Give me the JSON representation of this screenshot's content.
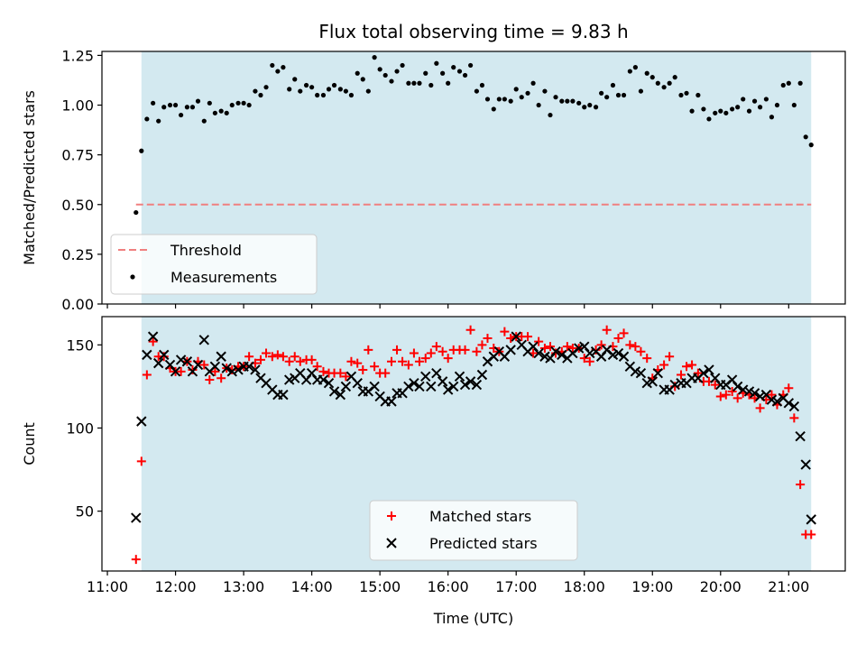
{
  "chart_data": [
    {
      "type": "scatter",
      "title": "Flux total observing time = 9.83 h",
      "xlabel": "",
      "ylabel": "Matched/Predicted stars",
      "xlim_hours": [
        10.92,
        21.83
      ],
      "ylim": [
        0,
        1.27
      ],
      "yticks": [
        0.0,
        0.25,
        0.5,
        0.75,
        1.0,
        1.25
      ],
      "ytick_labels": [
        "0.00",
        "0.25",
        "0.50",
        "0.75",
        "1.00",
        "1.25"
      ],
      "xticks_hours": [
        11,
        12,
        13,
        14,
        15,
        16,
        17,
        18,
        19,
        20,
        21
      ],
      "show_xtick_labels": false,
      "observing_window_hours": [
        11.5,
        21.33
      ],
      "shade_color": "#d3e9f0",
      "threshold": 0.5,
      "threshold_color": "#f08080",
      "legend_position": "lower-left",
      "legend": [
        {
          "label": "Threshold",
          "kind": "dashed-line",
          "color": "#f08080"
        },
        {
          "label": "Measurements",
          "kind": "dot",
          "color": "#000000"
        }
      ],
      "series": [
        {
          "name": "Measurements",
          "marker": "dot",
          "color": "#000000",
          "x": [
            11.42,
            11.5,
            11.58,
            11.67,
            11.75,
            11.83,
            11.92,
            12.0,
            12.08,
            12.17,
            12.25,
            12.33,
            12.42,
            12.5,
            12.58,
            12.67,
            12.75,
            12.83,
            12.92,
            13.0,
            13.08,
            13.17,
            13.25,
            13.33,
            13.42,
            13.5,
            13.58,
            13.67,
            13.75,
            13.83,
            13.92,
            14.0,
            14.08,
            14.17,
            14.25,
            14.33,
            14.42,
            14.5,
            14.58,
            14.67,
            14.75,
            14.83,
            14.92,
            15.0,
            15.08,
            15.17,
            15.25,
            15.33,
            15.42,
            15.5,
            15.58,
            15.67,
            15.75,
            15.83,
            15.92,
            16.0,
            16.08,
            16.17,
            16.25,
            16.33,
            16.42,
            16.5,
            16.58,
            16.67,
            16.75,
            16.83,
            16.92,
            17.0,
            17.08,
            17.17,
            17.25,
            17.33,
            17.42,
            17.5,
            17.58,
            17.67,
            17.75,
            17.83,
            17.92,
            18.0,
            18.08,
            18.17,
            18.25,
            18.33,
            18.42,
            18.5,
            18.58,
            18.67,
            18.75,
            18.83,
            18.92,
            19.0,
            19.08,
            19.17,
            19.25,
            19.33,
            19.42,
            19.5,
            19.58,
            19.67,
            19.75,
            19.83,
            19.92,
            20.0,
            20.08,
            20.17,
            20.25,
            20.33,
            20.42,
            20.5,
            20.58,
            20.67,
            20.75,
            20.83,
            20.92,
            21.0,
            21.08,
            21.17,
            21.25,
            21.33
          ],
          "y": [
            0.46,
            0.77,
            0.93,
            1.01,
            0.92,
            0.99,
            1.0,
            1.0,
            0.95,
            0.99,
            0.99,
            1.02,
            0.92,
            1.01,
            0.96,
            0.97,
            0.96,
            1.0,
            1.01,
            1.01,
            1.0,
            1.07,
            1.05,
            1.09,
            1.2,
            1.17,
            1.19,
            1.08,
            1.13,
            1.07,
            1.1,
            1.09,
            1.05,
            1.05,
            1.08,
            1.1,
            1.08,
            1.07,
            1.05,
            1.16,
            1.13,
            1.07,
            1.24,
            1.18,
            1.15,
            1.12,
            1.17,
            1.2,
            1.11,
            1.11,
            1.11,
            1.16,
            1.1,
            1.21,
            1.16,
            1.11,
            1.19,
            1.17,
            1.15,
            1.2,
            1.07,
            1.1,
            1.03,
            0.98,
            1.03,
            1.03,
            1.02,
            1.08,
            1.04,
            1.06,
            1.11,
            1.0,
            1.07,
            0.95,
            1.04,
            1.02,
            1.02,
            1.02,
            1.01,
            0.99,
            1.0,
            0.99,
            1.06,
            1.04,
            1.1,
            1.05,
            1.05,
            1.17,
            1.19,
            1.07,
            1.16,
            1.14,
            1.11,
            1.09,
            1.11,
            1.14,
            1.05,
            1.06,
            0.97,
            1.05,
            0.98,
            0.93,
            0.96,
            0.97,
            0.96,
            0.98,
            0.99,
            1.03,
            0.97,
            1.02,
            0.99,
            1.03,
            0.94,
            1.0,
            1.1,
            1.11,
            1.0,
            1.11,
            0.84,
            0.8
          ]
        }
      ]
    },
    {
      "type": "scatter",
      "title": "",
      "xlabel": "Time (UTC)",
      "ylabel": "Count",
      "xlim_hours": [
        10.92,
        21.83
      ],
      "ylim": [
        14,
        167
      ],
      "yticks": [
        50,
        100,
        150
      ],
      "ytick_labels": [
        "50",
        "100",
        "150"
      ],
      "xticks_hours": [
        11,
        12,
        13,
        14,
        15,
        16,
        17,
        18,
        19,
        20,
        21
      ],
      "xtick_labels": [
        "11:00",
        "12:00",
        "13:00",
        "14:00",
        "15:00",
        "16:00",
        "17:00",
        "18:00",
        "19:00",
        "20:00",
        "21:00"
      ],
      "show_xtick_labels": true,
      "observing_window_hours": [
        11.5,
        21.33
      ],
      "shade_color": "#d3e9f0",
      "legend_position": "bottom-center",
      "legend": [
        {
          "label": "Matched stars",
          "kind": "plus",
          "color": "#ff0000"
        },
        {
          "label": "Predicted stars",
          "kind": "cross",
          "color": "#000000"
        }
      ],
      "series": [
        {
          "name": "Matched stars",
          "marker": "plus",
          "color": "#ff0000",
          "x": [
            11.42,
            11.5,
            11.58,
            11.67,
            11.75,
            11.83,
            11.92,
            12.0,
            12.08,
            12.17,
            12.25,
            12.33,
            12.42,
            12.5,
            12.58,
            12.67,
            12.75,
            12.83,
            12.92,
            13.0,
            13.08,
            13.17,
            13.25,
            13.33,
            13.42,
            13.5,
            13.58,
            13.67,
            13.75,
            13.83,
            13.92,
            14.0,
            14.08,
            14.17,
            14.25,
            14.33,
            14.42,
            14.5,
            14.58,
            14.67,
            14.75,
            14.83,
            14.92,
            15.0,
            15.08,
            15.17,
            15.25,
            15.33,
            15.42,
            15.5,
            15.58,
            15.67,
            15.75,
            15.83,
            15.92,
            16.0,
            16.08,
            16.17,
            16.25,
            16.33,
            16.42,
            16.5,
            16.58,
            16.67,
            16.75,
            16.83,
            16.92,
            17.0,
            17.08,
            17.17,
            17.25,
            17.33,
            17.42,
            17.5,
            17.58,
            17.67,
            17.75,
            17.83,
            17.92,
            18.0,
            18.08,
            18.17,
            18.25,
            18.33,
            18.42,
            18.5,
            18.58,
            18.67,
            18.75,
            18.83,
            18.92,
            19.0,
            19.08,
            19.17,
            19.25,
            19.33,
            19.42,
            19.5,
            19.58,
            19.67,
            19.75,
            19.83,
            19.92,
            20.0,
            20.08,
            20.17,
            20.25,
            20.33,
            20.42,
            20.5,
            20.58,
            20.67,
            20.75,
            20.83,
            20.92,
            21.0,
            21.08,
            21.17,
            21.25,
            21.33
          ],
          "y": [
            21,
            80,
            132,
            152,
            143,
            143,
            136,
            134,
            134,
            140,
            135,
            140,
            138,
            129,
            134,
            130,
            136,
            135,
            137,
            137,
            143,
            139,
            141,
            145,
            143,
            144,
            143,
            140,
            143,
            140,
            141,
            141,
            137,
            134,
            133,
            133,
            133,
            131,
            140,
            139,
            135,
            147,
            137,
            133,
            133,
            140,
            147,
            140,
            138,
            145,
            140,
            142,
            145,
            149,
            146,
            142,
            147,
            147,
            147,
            159,
            146,
            150,
            154,
            148,
            146,
            158,
            154,
            155,
            155,
            155,
            145,
            152,
            148,
            149,
            145,
            146,
            149,
            148,
            148,
            142,
            140,
            147,
            150,
            159,
            149,
            154,
            157,
            150,
            149,
            146,
            142,
            130,
            135,
            138,
            143,
            125,
            132,
            137,
            138,
            133,
            128,
            128,
            126,
            119,
            120,
            122,
            118,
            121,
            120,
            118,
            112,
            117,
            120,
            114,
            120,
            124,
            106,
            66,
            36,
            36
          ]
        },
        {
          "name": "Predicted stars",
          "marker": "cross",
          "color": "#000000",
          "x": [
            11.42,
            11.5,
            11.58,
            11.67,
            11.75,
            11.83,
            11.92,
            12.0,
            12.08,
            12.17,
            12.25,
            12.33,
            12.42,
            12.5,
            12.58,
            12.67,
            12.75,
            12.83,
            12.92,
            13.0,
            13.08,
            13.17,
            13.25,
            13.33,
            13.42,
            13.5,
            13.58,
            13.67,
            13.75,
            13.83,
            13.92,
            14.0,
            14.08,
            14.17,
            14.25,
            14.33,
            14.42,
            14.5,
            14.58,
            14.67,
            14.75,
            14.83,
            14.92,
            15.0,
            15.08,
            15.17,
            15.25,
            15.33,
            15.42,
            15.5,
            15.58,
            15.67,
            15.75,
            15.83,
            15.92,
            16.0,
            16.08,
            16.17,
            16.25,
            16.33,
            16.42,
            16.5,
            16.58,
            16.67,
            16.75,
            16.83,
            16.92,
            17.0,
            17.08,
            17.17,
            17.25,
            17.33,
            17.42,
            17.5,
            17.58,
            17.67,
            17.75,
            17.83,
            17.92,
            18.0,
            18.08,
            18.17,
            18.25,
            18.33,
            18.42,
            18.5,
            18.58,
            18.67,
            18.75,
            18.83,
            18.92,
            19.0,
            19.08,
            19.17,
            19.25,
            19.33,
            19.42,
            19.5,
            19.58,
            19.67,
            19.75,
            19.83,
            19.92,
            20.0,
            20.08,
            20.17,
            20.25,
            20.33,
            20.42,
            20.5,
            20.58,
            20.67,
            20.75,
            20.83,
            20.92,
            21.0,
            21.08,
            21.17,
            21.25,
            21.33
          ],
          "y": [
            46,
            104,
            144,
            155,
            139,
            144,
            138,
            134,
            141,
            140,
            134,
            138,
            153,
            134,
            137,
            143,
            136,
            134,
            135,
            137,
            137,
            135,
            130,
            127,
            123,
            120,
            120,
            129,
            130,
            133,
            129,
            133,
            129,
            129,
            127,
            122,
            120,
            125,
            131,
            127,
            122,
            122,
            125,
            119,
            116,
            116,
            121,
            121,
            125,
            127,
            125,
            131,
            125,
            133,
            128,
            123,
            125,
            131,
            126,
            128,
            126,
            132,
            140,
            143,
            146,
            143,
            147,
            155,
            150,
            146,
            149,
            145,
            143,
            142,
            146,
            144,
            142,
            145,
            148,
            149,
            145,
            146,
            143,
            147,
            144,
            145,
            143,
            137,
            134,
            133,
            127,
            128,
            133,
            123,
            123,
            126,
            127,
            127,
            130,
            130,
            133,
            135,
            130,
            126,
            126,
            129,
            125,
            123,
            122,
            121,
            119,
            120,
            117,
            116,
            118,
            115,
            113,
            95,
            78,
            45
          ]
        }
      ]
    }
  ]
}
